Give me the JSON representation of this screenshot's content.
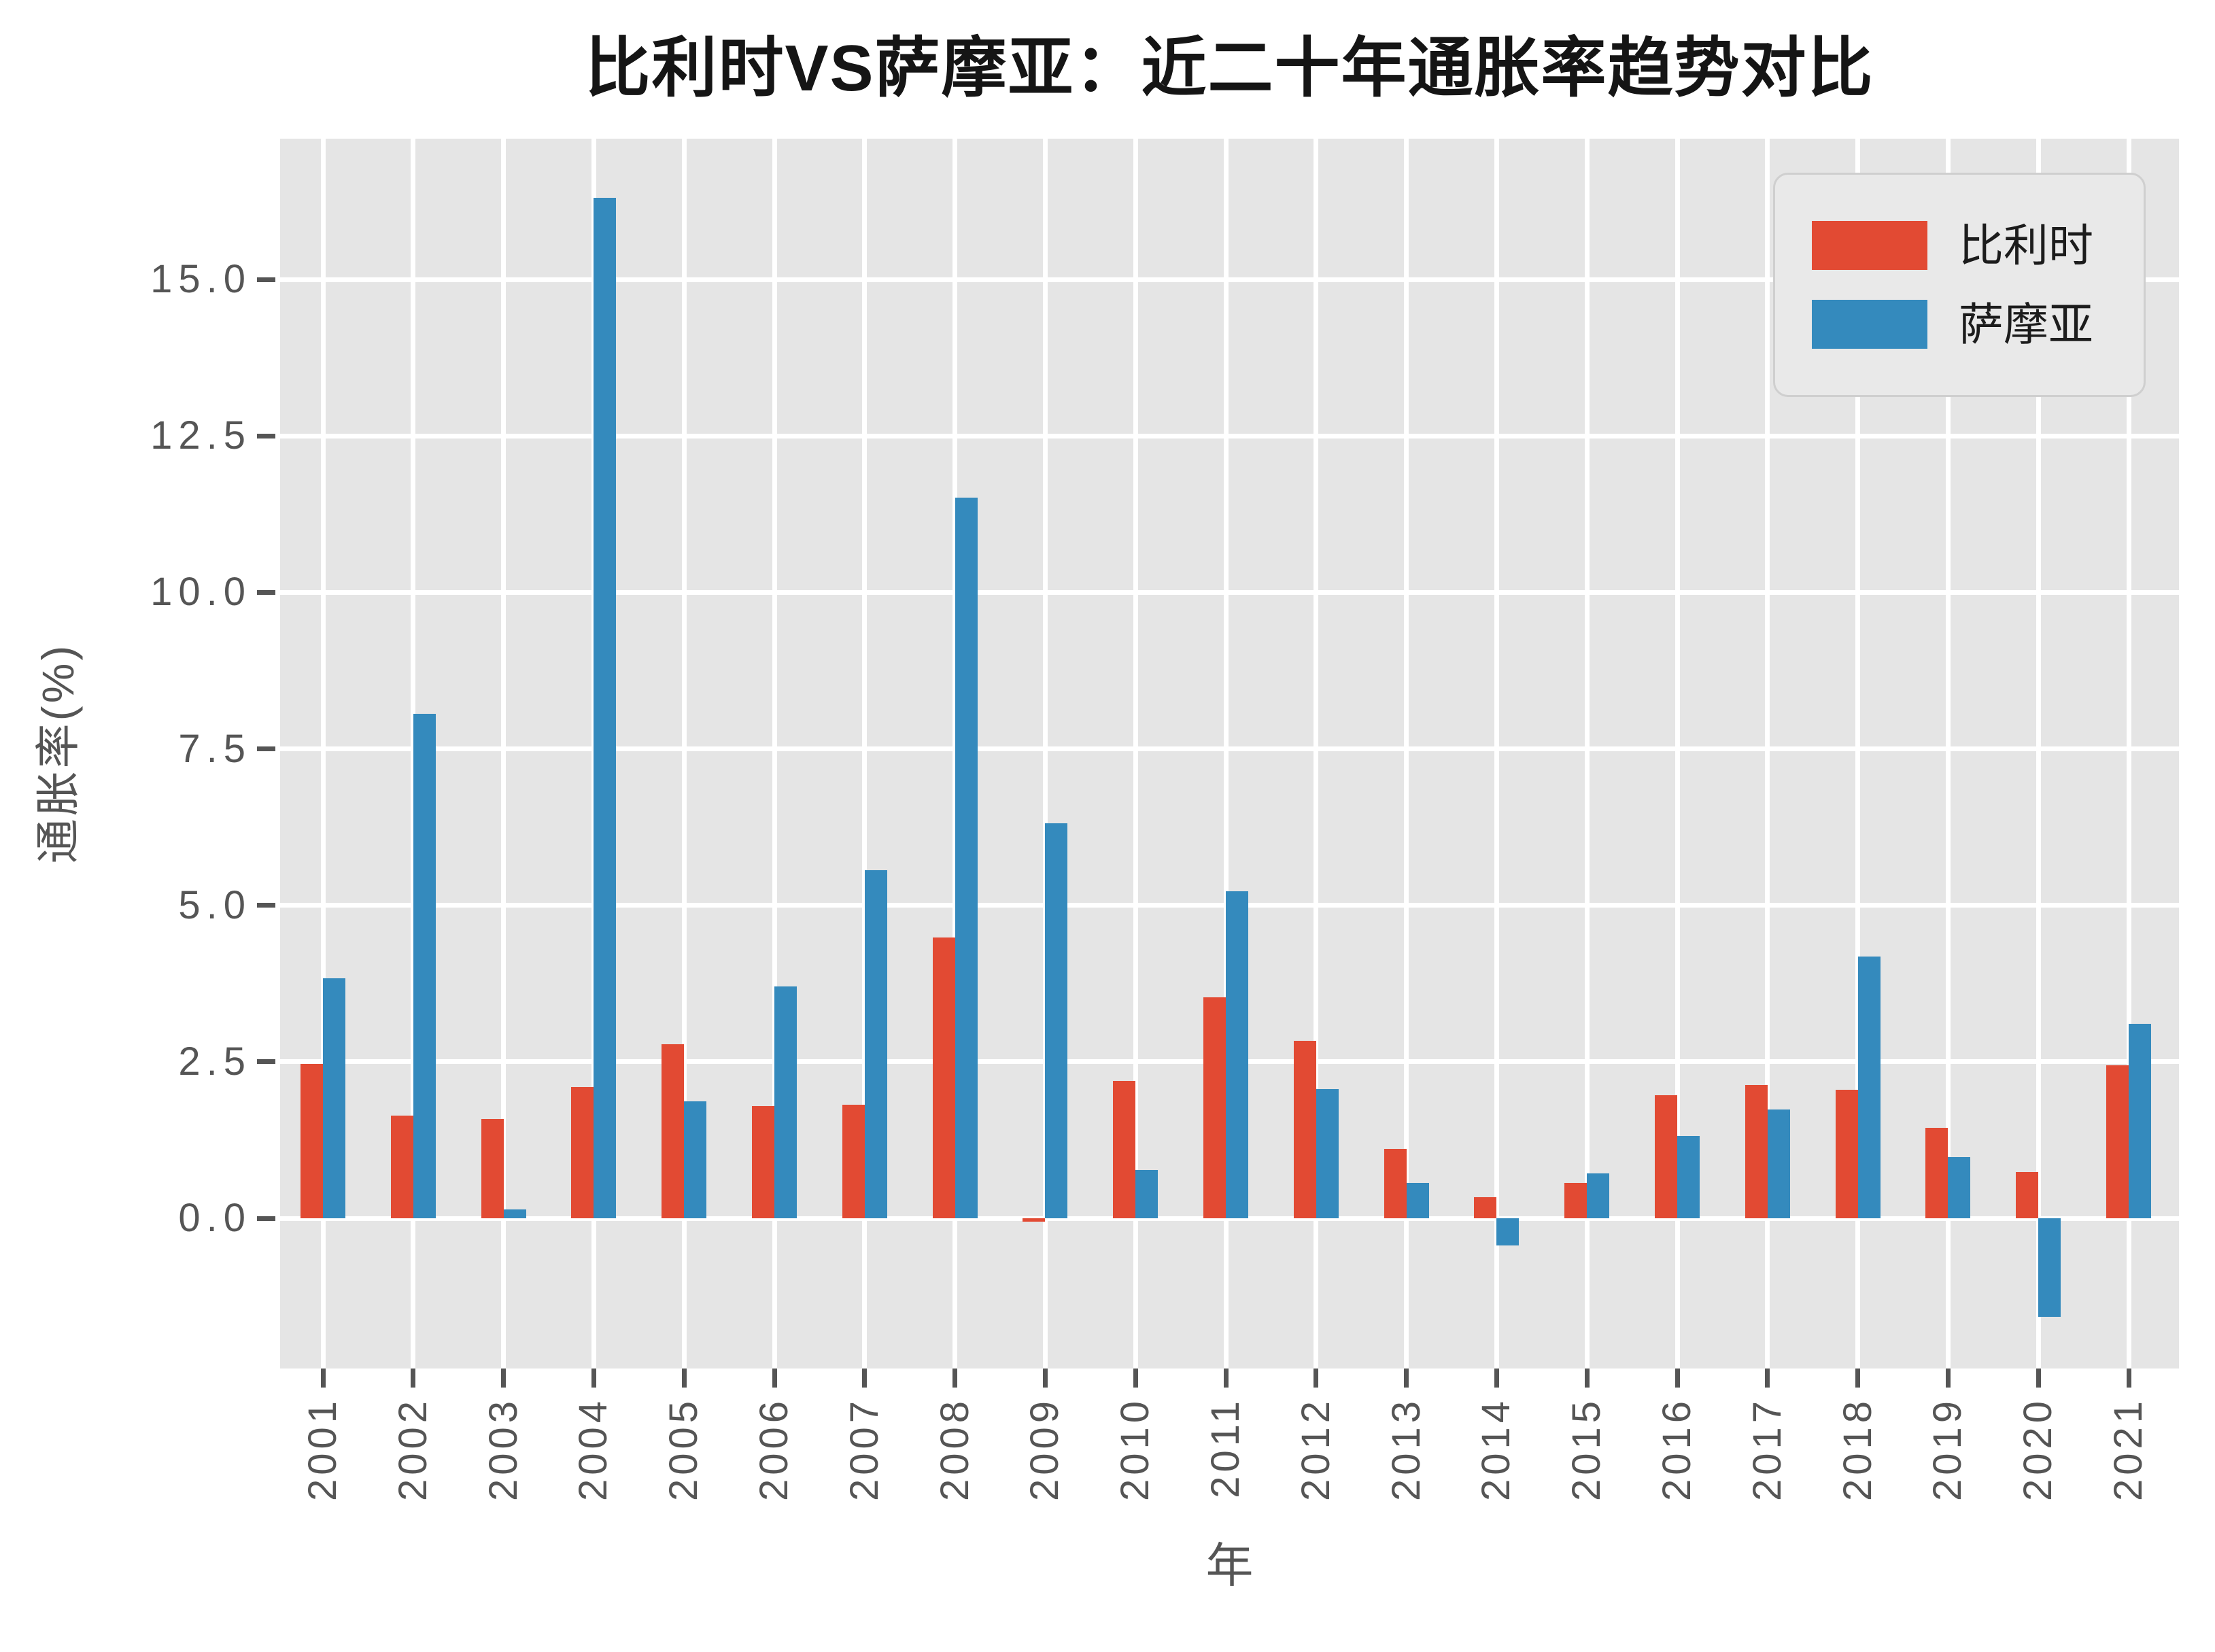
{
  "figure": {
    "title": "比利时VS萨摩亚：近二十年通胀率趋势对比"
  },
  "chart_data": {
    "type": "bar",
    "title": "比利时VS萨摩亚：近二十年通胀率趋势对比",
    "xlabel": "年",
    "ylabel": "通胀率(%)",
    "categories": [
      "2001",
      "2002",
      "2003",
      "2004",
      "2005",
      "2006",
      "2007",
      "2008",
      "2009",
      "2010",
      "2011",
      "2012",
      "2013",
      "2014",
      "2015",
      "2016",
      "2017",
      "2018",
      "2019",
      "2020",
      "2021"
    ],
    "series": [
      {
        "name": "比利时",
        "color": "#E24A33",
        "values": [
          2.47,
          1.64,
          1.59,
          2.1,
          2.78,
          1.79,
          1.82,
          4.49,
          -0.05,
          2.19,
          3.53,
          2.84,
          1.11,
          0.34,
          0.56,
          1.97,
          2.13,
          2.05,
          1.44,
          0.74,
          2.44
        ]
      },
      {
        "name": "萨摩亚",
        "color": "#348ABD",
        "values": [
          3.83,
          8.06,
          0.14,
          16.31,
          1.87,
          3.7,
          5.56,
          11.52,
          6.31,
          0.77,
          5.23,
          2.06,
          0.57,
          -0.43,
          0.72,
          1.32,
          1.74,
          4.18,
          0.98,
          -1.57,
          3.11
        ]
      }
    ],
    "yticks": [
      0.0,
      2.5,
      5.0,
      7.5,
      10.0,
      12.5,
      15.0
    ],
    "ytick_labels": [
      "0.0",
      "2.5",
      "5.0",
      "7.5",
      "10.0",
      "12.5",
      "15.0"
    ],
    "ylim": [
      -2.4,
      17.25
    ],
    "grid": true,
    "legend_position": "upper right",
    "colors": {
      "plot_background": "#E5E5E5",
      "grid": "#FFFFFF",
      "tick_text": "#555555",
      "title_text": "#151515"
    }
  }
}
